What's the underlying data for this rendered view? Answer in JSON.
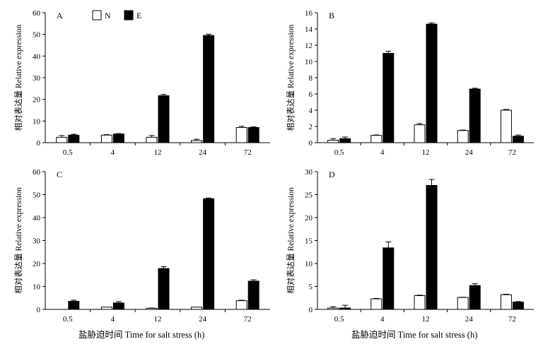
{
  "figure": {
    "xlabel": "盐胁迫时间 Time for salt stress (h)",
    "legend": [
      {
        "label": "N",
        "color": "#ffffff"
      },
      {
        "label": "E",
        "color": "#000000"
      }
    ]
  },
  "chart_data": [
    {
      "type": "bar",
      "panel": "A",
      "categories": [
        "0.5",
        "4",
        "12",
        "24",
        "72"
      ],
      "series": [
        {
          "name": "N",
          "values": [
            2.5,
            3.5,
            2.5,
            1.0,
            7.0
          ],
          "errors": [
            0.8,
            0.2,
            0.8,
            0.6,
            0.6
          ]
        },
        {
          "name": "E",
          "values": [
            3.5,
            4.0,
            21.7,
            49.5,
            7.0
          ],
          "errors": [
            0.4,
            0.2,
            0.6,
            0.6,
            0.3
          ]
        }
      ],
      "ylabel": "相对表达量 Relative expression",
      "ylim": [
        0,
        60
      ],
      "yticks": [
        0,
        10,
        20,
        30,
        40,
        50,
        60
      ]
    },
    {
      "type": "bar",
      "panel": "B",
      "categories": [
        "0.5",
        "4",
        "12",
        "24",
        "72"
      ],
      "series": [
        {
          "name": "N",
          "values": [
            0.3,
            0.9,
            2.2,
            1.5,
            4.0
          ],
          "errors": [
            0.2,
            0.05,
            0.15,
            0.05,
            0.1
          ]
        },
        {
          "name": "E",
          "values": [
            0.5,
            11.0,
            14.6,
            6.6,
            0.8
          ],
          "errors": [
            0.2,
            0.25,
            0.15,
            0.1,
            0.15
          ]
        }
      ],
      "ylabel": "相对表达量 Relative expression",
      "ylim": [
        0,
        16
      ],
      "yticks": [
        0,
        2,
        4,
        6,
        8,
        10,
        12,
        14,
        16
      ]
    },
    {
      "type": "bar",
      "panel": "C",
      "categories": [
        "0.5",
        "4",
        "12",
        "24",
        "72"
      ],
      "series": [
        {
          "name": "N",
          "values": [
            0,
            1.0,
            0.5,
            1.0,
            3.8
          ],
          "errors": [
            0,
            0,
            0.1,
            0,
            0.2
          ]
        },
        {
          "name": "E",
          "values": [
            3.5,
            2.8,
            17.8,
            48.2,
            12.3
          ],
          "errors": [
            0.5,
            0.6,
            0.8,
            0.3,
            0.6
          ]
        }
      ],
      "ylabel": "相对表达量 Relative expression",
      "ylim": [
        0,
        60
      ],
      "yticks": [
        0,
        10,
        20,
        30,
        40,
        50,
        60
      ]
    },
    {
      "type": "bar",
      "panel": "D",
      "categories": [
        "0.5",
        "4",
        "12",
        "24",
        "72"
      ],
      "series": [
        {
          "name": "N",
          "values": [
            0.3,
            2.3,
            3.0,
            2.6,
            3.2
          ],
          "errors": [
            0.3,
            0.1,
            0.1,
            0.05,
            0.1
          ]
        },
        {
          "name": "E",
          "values": [
            0.3,
            13.4,
            27.0,
            5.2,
            1.6
          ],
          "errors": [
            0.6,
            1.3,
            1.3,
            0.4,
            0.1
          ]
        }
      ],
      "ylabel": "相对表达量 Relative expression",
      "ylim": [
        0,
        30
      ],
      "yticks": [
        0,
        5,
        10,
        15,
        20,
        25,
        30
      ]
    }
  ]
}
